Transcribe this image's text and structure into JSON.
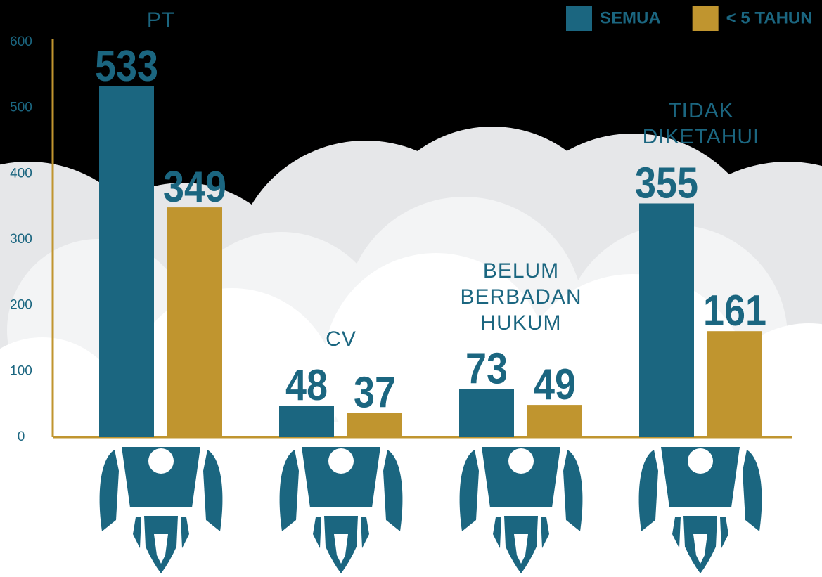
{
  "chart_data": {
    "type": "bar",
    "categories": [
      "PT",
      "CV",
      "BELUM BERBADAN HUKUM",
      "TIDAK DIKETAHUI"
    ],
    "series": [
      {
        "name": "SEMUA",
        "color": "#1b6680",
        "values": [
          533,
          48,
          73,
          355
        ]
      },
      {
        "name": "< 5 TAHUN",
        "color": "#c0952f",
        "values": [
          349,
          37,
          49,
          161
        ]
      }
    ],
    "ylim": [
      0,
      600
    ],
    "yticks": [
      0,
      100,
      200,
      300,
      400,
      500,
      600
    ],
    "grid": false,
    "legend": "top-right"
  }
}
